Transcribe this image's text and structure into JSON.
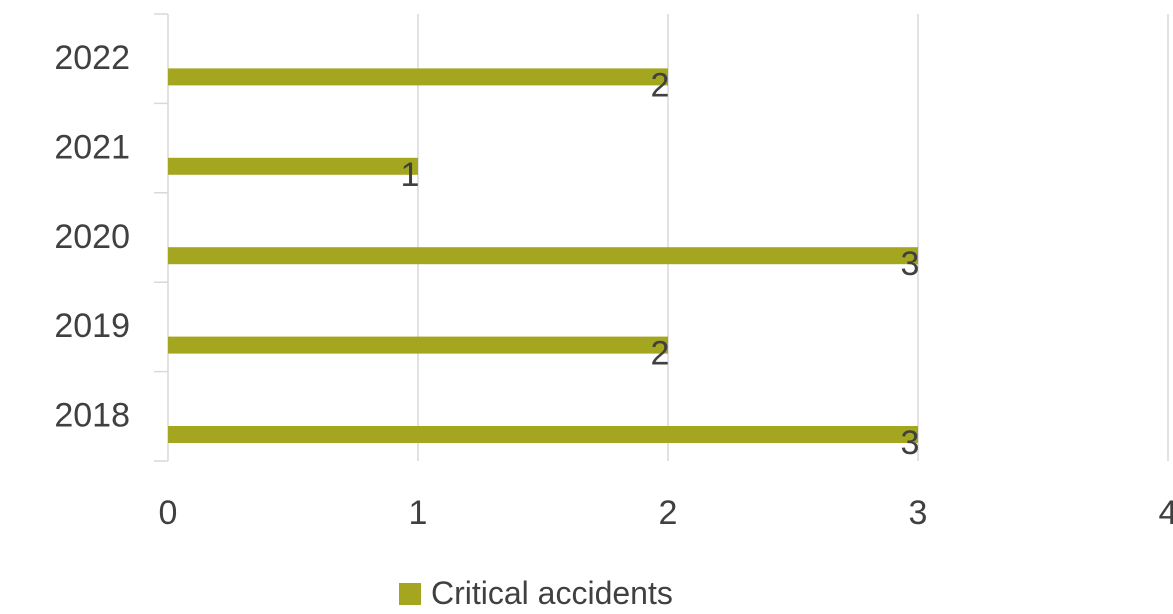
{
  "chart_data": {
    "type": "bar",
    "orientation": "horizontal",
    "categories": [
      "2018",
      "2019",
      "2020",
      "2021",
      "2022"
    ],
    "series": [
      {
        "name": "Critical accidents",
        "values": [
          3,
          2,
          3,
          1,
          2
        ],
        "color": "#A5A61F"
      }
    ],
    "xlim": [
      0,
      4
    ],
    "x_ticks": [
      "0",
      "1",
      "2",
      "3",
      "4"
    ],
    "grid": "vertical",
    "legend_position": "bottom",
    "data_labels": true
  }
}
